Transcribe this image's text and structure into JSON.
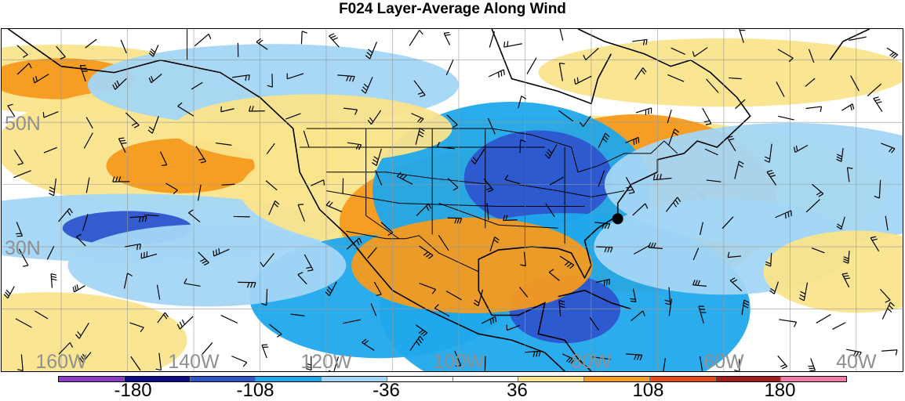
{
  "title": "F024 Layer-Average Along Wind",
  "map": {
    "lat_labels": [
      {
        "label": "50N",
        "lat": 50
      },
      {
        "label": "30N",
        "lat": 30
      }
    ],
    "lon_labels": [
      {
        "label": "160W",
        "lon": -160
      },
      {
        "label": "140W",
        "lon": -140
      },
      {
        "label": "120W",
        "lon": -120
      },
      {
        "label": "100W",
        "lon": -100
      },
      {
        "label": "80W",
        "lon": -80
      },
      {
        "label": "60W",
        "lon": -60
      },
      {
        "label": "40W",
        "lon": -40
      }
    ],
    "lon_range": [
      -169,
      -33
    ],
    "lat_range": [
      10,
      65
    ],
    "marker": {
      "lon": -76,
      "lat": 34.5
    }
  },
  "colorbar": {
    "colors": [
      "#8a3cc8",
      "#0d0d8c",
      "#2d55cc",
      "#1fa8ec",
      "#a3d6f5",
      "#ffffff",
      "#ffffff",
      "#fae48c",
      "#f59a1e",
      "#e64a17",
      "#a61d1d",
      "#f07aa5"
    ],
    "labels": [
      {
        "text": "-180",
        "pos": 0.095
      },
      {
        "text": "-108",
        "pos": 0.25
      },
      {
        "text": "-36",
        "pos": 0.416
      },
      {
        "text": "36",
        "pos": 0.582
      },
      {
        "text": "108",
        "pos": 0.748
      },
      {
        "text": "180",
        "pos": 0.915
      }
    ]
  }
}
